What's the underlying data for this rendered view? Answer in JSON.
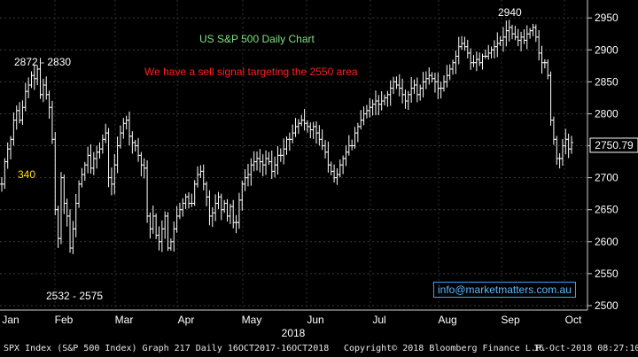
{
  "chart_data": {
    "type": "bar",
    "subtype": "ohlc",
    "title": "US S&P 500 Daily Chart",
    "subtitle": "We have a sell signal targeting the 2550 area",
    "x_year_label": "2018",
    "x_ticks": [
      "Jan",
      "Feb",
      "Mar",
      "Apr",
      "May",
      "Jun",
      "Jul",
      "Aug",
      "Sep",
      "Oct"
    ],
    "y_ticks": [
      2500,
      2550,
      2600,
      2650,
      2700,
      2750,
      2800,
      2850,
      2900,
      2950
    ],
    "ylim": [
      2493,
      2978
    ],
    "last_price": "2750.79",
    "annotations": {
      "jan_high": "2872 - 2830",
      "feb_low": "2532 - 2575",
      "sep_high": "2940",
      "left_level": "340"
    },
    "monthly_anchors": [
      {
        "m": "Jan",
        "v": [
          2690,
          2725,
          2745,
          2760,
          2790,
          2805,
          2790,
          2810,
          2835,
          2845,
          2860,
          2855,
          2870,
          2830,
          2845,
          2830,
          2810
        ]
      },
      {
        "m": "Feb",
        "v": [
          2760,
          2650,
          2605,
          2700,
          2660,
          2640,
          2590,
          2620,
          2660,
          2690,
          2705,
          2720,
          2735,
          2715,
          2730,
          2740,
          2745,
          2760,
          2770
        ]
      },
      {
        "m": "Mar",
        "v": [
          2700,
          2690,
          2720,
          2750,
          2770,
          2785,
          2790,
          2765,
          2755,
          2750,
          2735,
          2720,
          2715,
          2640,
          2620,
          2640,
          2610,
          2600,
          2620,
          2640
        ]
      },
      {
        "m": "Apr",
        "v": [
          2590,
          2600,
          2620,
          2640,
          2650,
          2660,
          2670,
          2660,
          2660,
          2690,
          2705,
          2710,
          2690,
          2670,
          2640,
          2645,
          2660,
          2670,
          2650,
          2660,
          2640
        ]
      },
      {
        "m": "May",
        "v": [
          2655,
          2630,
          2630,
          2665,
          2690,
          2700,
          2705,
          2720,
          2725,
          2730,
          2725,
          2720,
          2730,
          2725,
          2710,
          2720,
          2735,
          2735,
          2745,
          2760,
          2760
        ]
      },
      {
        "m": "Jun",
        "v": [
          2770,
          2780,
          2785,
          2790,
          2785,
          2780,
          2775,
          2780,
          2770,
          2760,
          2750,
          2740,
          2720,
          2710,
          2700,
          2705,
          2720,
          2730,
          2740,
          2750
        ]
      },
      {
        "m": "Jul",
        "v": [
          2750,
          2770,
          2780,
          2790,
          2800,
          2805,
          2810,
          2815,
          2820,
          2815,
          2820,
          2825,
          2830,
          2840,
          2850,
          2845,
          2840,
          2830,
          2820,
          2830,
          2840,
          2845
        ]
      },
      {
        "m": "Aug",
        "v": [
          2830,
          2840,
          2850,
          2855,
          2860,
          2855,
          2850,
          2840,
          2840,
          2850,
          2860,
          2870,
          2880,
          2890,
          2905,
          2910,
          2905,
          2895,
          2880,
          2880,
          2885,
          2880,
          2890
        ]
      },
      {
        "m": "Sep",
        "v": [
          2890,
          2895,
          2900,
          2905,
          2910,
          2915,
          2920,
          2930,
          2935,
          2925,
          2920,
          2915,
          2920,
          2915,
          2925,
          2930,
          2935,
          2920,
          2895,
          2880
        ]
      },
      {
        "m": "Oct",
        "v": [
          2880,
          2860,
          2790,
          2760,
          2730,
          2730,
          2750,
          2760,
          2745,
          2755
        ]
      }
    ]
  },
  "contact": "info@marketmatters.com.au",
  "footer": {
    "left": "SPX Index (S&P 500 Index) Graph 217  Daily 16OCT2017-16OCT2018",
    "middle": "Copyright© 2018 Bloomberg Finance L.P.",
    "right": "16-Oct-2018 08:27:10"
  }
}
